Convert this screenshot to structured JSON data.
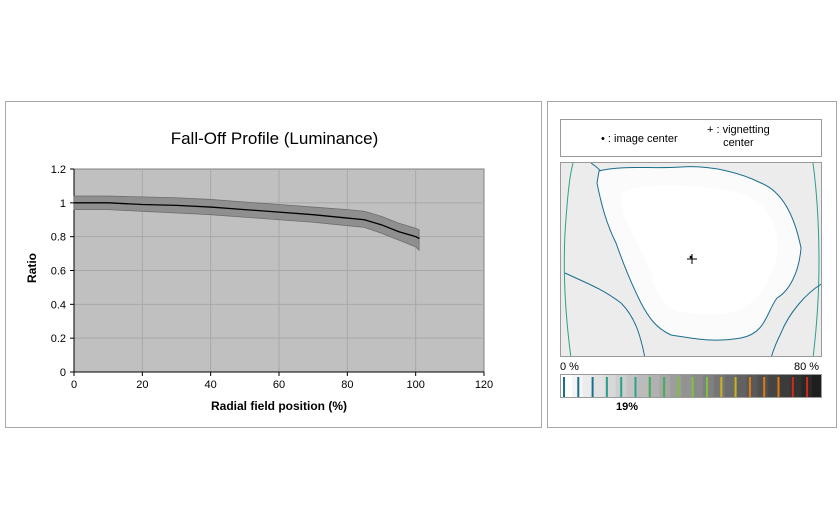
{
  "chart_data": {
    "type": "area",
    "title": "Fall-Off Profile (Luminance)",
    "xlabel": "Radial field position (%)",
    "ylabel": "Ratio",
    "xlim": [
      0,
      120
    ],
    "ylim": [
      0,
      1.2
    ],
    "x_ticks": [
      "0",
      "20",
      "40",
      "60",
      "80",
      "100",
      "120"
    ],
    "y_ticks": [
      "0",
      "0.2",
      "0.4",
      "0.6",
      "0.8",
      "1",
      "1.2"
    ],
    "grid": true,
    "plot_background": "#c0c0c0",
    "band_color": "#8f8f8f",
    "line_color": "#000000",
    "series": [
      {
        "x": [
          0,
          10,
          20,
          30,
          40,
          50,
          60,
          70,
          80,
          85,
          90,
          95,
          100,
          101
        ],
        "values": [
          1.0,
          1.0,
          0.99,
          0.985,
          0.975,
          0.96,
          0.945,
          0.93,
          0.91,
          0.9,
          0.87,
          0.83,
          0.8,
          0.79
        ],
        "upper": [
          1.04,
          1.04,
          1.035,
          1.03,
          1.02,
          1.005,
          0.99,
          0.975,
          0.96,
          0.95,
          0.92,
          0.88,
          0.85,
          0.84
        ],
        "lower": [
          0.96,
          0.96,
          0.95,
          0.94,
          0.93,
          0.915,
          0.9,
          0.885,
          0.865,
          0.855,
          0.82,
          0.78,
          0.74,
          0.72
        ]
      }
    ]
  },
  "vignetting_map": {
    "legend": {
      "image_center_marker": "•",
      "image_center_label": ": image center",
      "vignetting_center_marker": "+",
      "vignetting_center_label_line1": ": vignetting",
      "vignetting_center_label_line2": "center"
    },
    "scale_min_label": "0 %",
    "scale_max_label": "80 %",
    "current_level_label": "19%",
    "contour_colors": [
      "#1a6e8e",
      "#2aa18a",
      "#3fae5a",
      "#7cc23c",
      "#c8b41c",
      "#e07a12",
      "#d02a1a"
    ],
    "icons": {
      "image_center": "dot-icon",
      "vignetting_center": "crosshair-icon"
    }
  }
}
